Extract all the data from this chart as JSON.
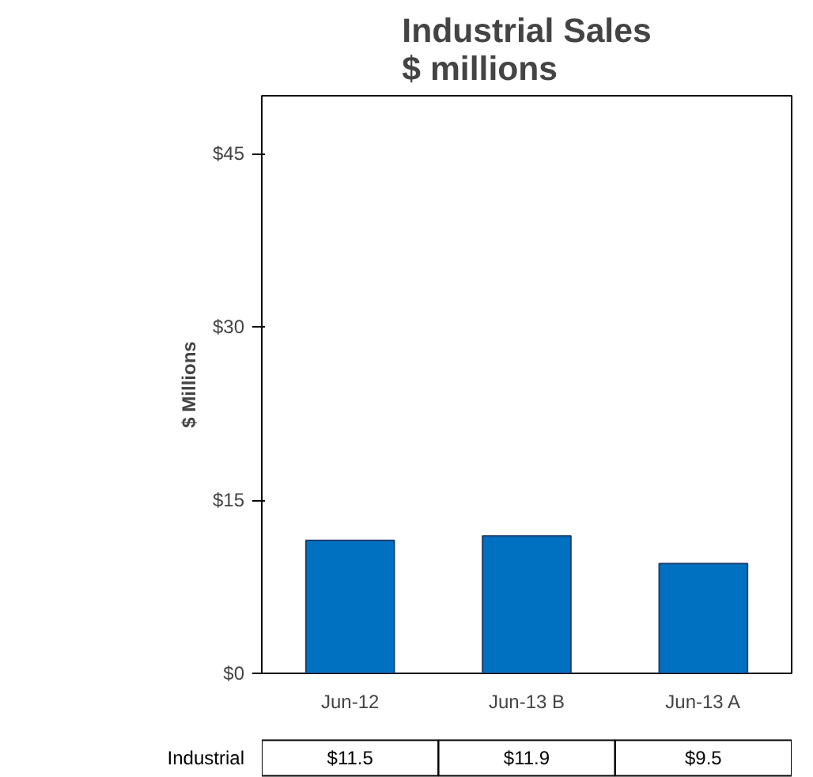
{
  "chart_data": {
    "type": "bar",
    "title": "Industrial Sales\n$ millions",
    "ylabel": "$ Millions",
    "categories": [
      "Jun-12",
      "Jun-13 B",
      "Jun-13 A"
    ],
    "series": [
      {
        "name": "Industrial",
        "color": "#0070c0",
        "values": [
          11.5,
          11.9,
          9.5
        ],
        "value_labels": [
          "$11.5",
          "$11.9",
          "$9.5"
        ]
      }
    ],
    "ylim": [
      0,
      50
    ],
    "yticks": [
      {
        "value": 0,
        "label": "$0"
      },
      {
        "value": 15,
        "label": "$15"
      },
      {
        "value": 30,
        "label": "$30"
      },
      {
        "value": 45,
        "label": "$45"
      }
    ],
    "grid": false
  }
}
